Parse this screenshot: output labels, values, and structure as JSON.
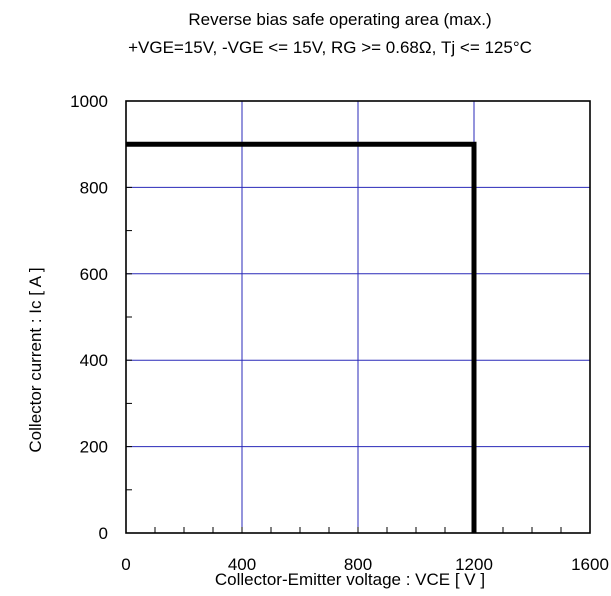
{
  "chart_data": {
    "type": "line",
    "title": "Reverse bias safe operating area (max.)",
    "subtitle": "+VGE=15V, -VGE <= 15V, RG >= 0.68Ω, Tj <= 125°C",
    "xlabel": "Collector-Emitter voltage : VCE [ V ]",
    "ylabel": "Collector current : Ic [ A ]",
    "xlim": [
      0,
      1600
    ],
    "ylim": [
      0,
      1000
    ],
    "x_ticks": [
      0,
      400,
      800,
      1200,
      1600
    ],
    "y_ticks": [
      0,
      200,
      400,
      600,
      800,
      1000
    ],
    "x_minor_step": 100,
    "y_minor_step": 100,
    "grid": true,
    "grid_color": "#2a2ab8",
    "series": [
      {
        "x": [
          0,
          1200,
          1200
        ],
        "y": [
          900,
          900,
          0
        ],
        "color": "#000000"
      }
    ]
  }
}
